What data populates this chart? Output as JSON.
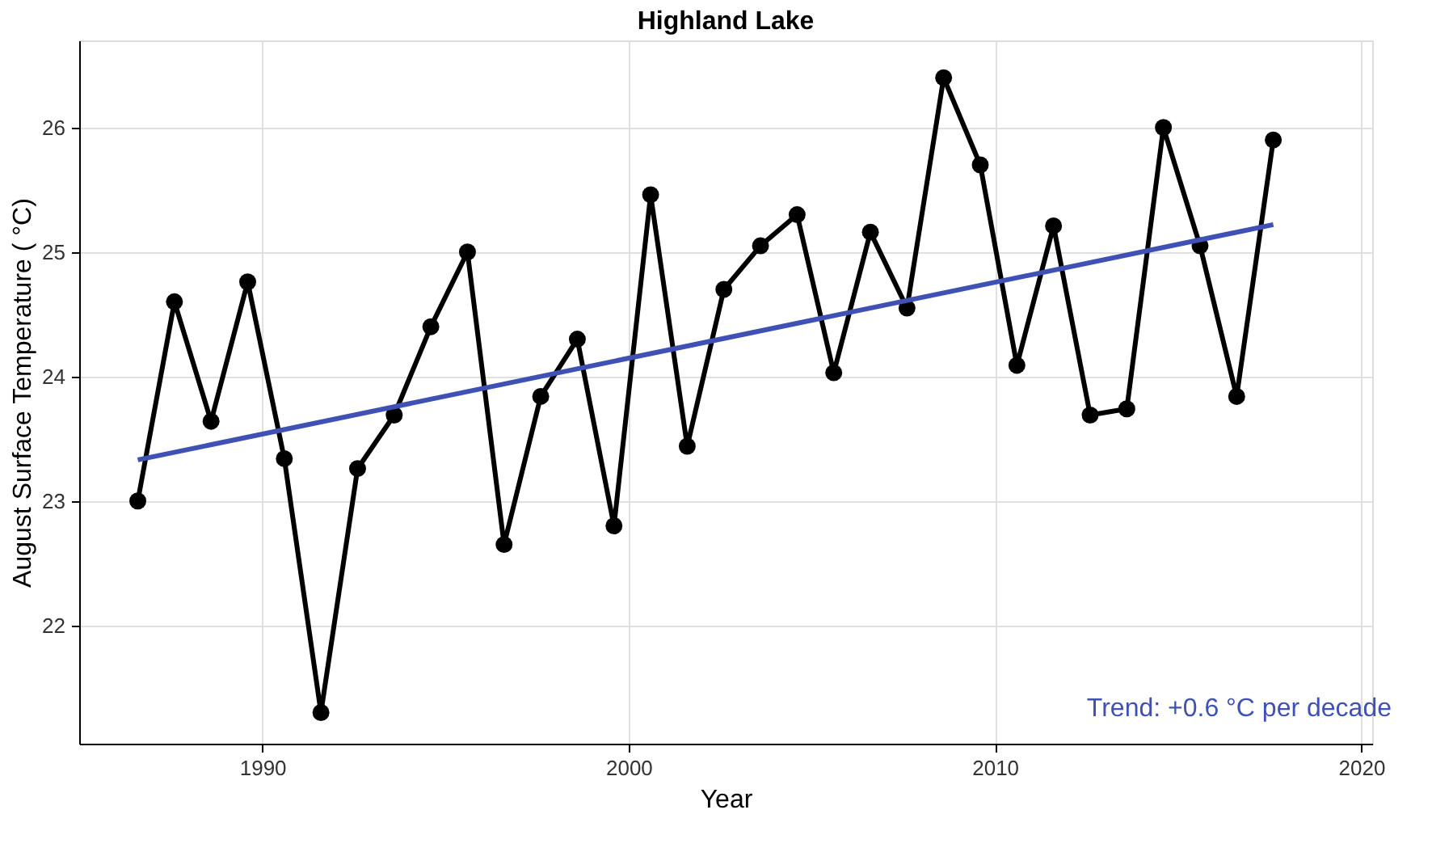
{
  "chart_data": {
    "type": "line",
    "title": "Highland Lake",
    "xlabel": "Year",
    "ylabel": "August Surface Temperature ( °C)",
    "x": [
      1986.6,
      1987.6,
      1988.6,
      1989.6,
      1990.6,
      1991.6,
      1992.6,
      1993.6,
      1994.6,
      1995.6,
      1996.6,
      1997.6,
      1998.6,
      1999.6,
      2000.6,
      2001.6,
      2002.6,
      2003.6,
      2004.6,
      2005.6,
      2006.6,
      2007.6,
      2008.6,
      2009.6,
      2010.6,
      2011.6,
      2012.6,
      2013.6,
      2014.6,
      2015.6,
      2016.6,
      2017.6
    ],
    "series": [
      {
        "color": "#000000",
        "marker": "circle",
        "values": [
          23.0,
          24.6,
          23.64,
          24.76,
          23.34,
          21.3,
          23.26,
          23.69,
          24.4,
          25.0,
          22.65,
          23.84,
          24.3,
          22.8,
          25.46,
          23.44,
          24.7,
          25.05,
          25.3,
          24.03,
          25.16,
          24.55,
          26.4,
          25.7,
          24.09,
          25.21,
          23.69,
          23.74,
          26.0,
          25.05,
          23.84,
          25.9
        ]
      },
      {
        "type": "line",
        "color": "#3f51b5",
        "marker": "none",
        "x": [
          1986.6,
          2017.6
        ],
        "values": [
          23.33,
          25.22
        ]
      }
    ],
    "xlim": [
      1985,
      2020.3
    ],
    "ylim": [
      21.05,
      26.7
    ],
    "xticks": [
      1990,
      2000,
      2010,
      2020
    ],
    "yticks": [
      22,
      23,
      24,
      25,
      26
    ],
    "grid": true,
    "annotations": [
      "Trend: +0.6 °C per decade"
    ]
  }
}
